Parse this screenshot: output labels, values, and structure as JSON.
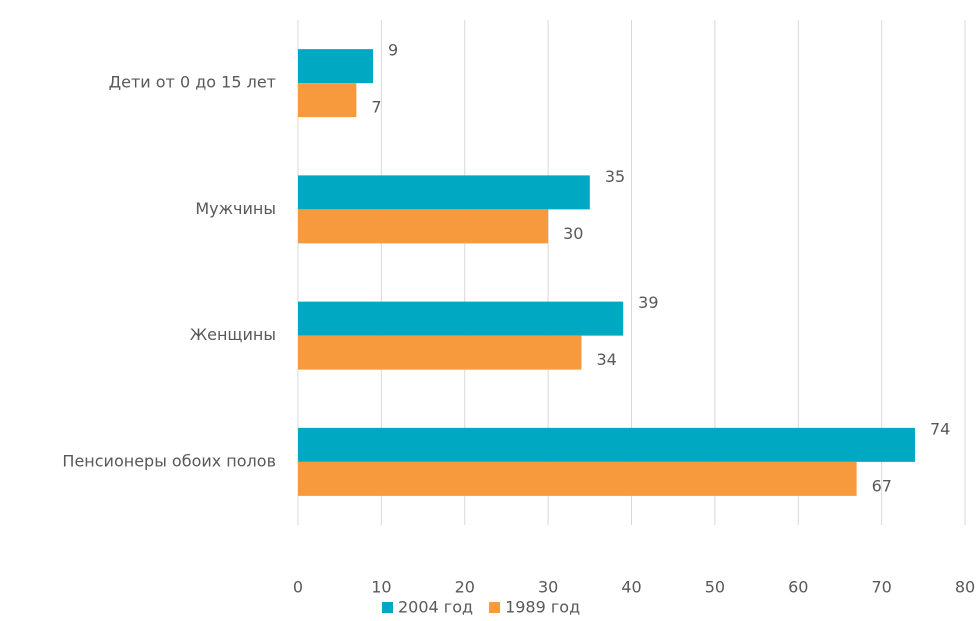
{
  "chart_data": {
    "type": "hbar",
    "categories": [
      "Дети от 0 до 15 лет",
      "Мужчины",
      "Женщины",
      "Пенсионеры обоих полов"
    ],
    "series": [
      {
        "name": "2004 год",
        "color": "#00a9c1",
        "values": [
          9,
          35,
          39,
          74
        ]
      },
      {
        "name": "1989 год",
        "color": "#f79a3e",
        "values": [
          7,
          30,
          34,
          67
        ]
      }
    ],
    "xlim": [
      0,
      80
    ],
    "xticks": [
      0,
      10,
      20,
      30,
      40,
      50,
      60,
      70,
      80
    ],
    "grid": true,
    "legend": "bottom"
  }
}
